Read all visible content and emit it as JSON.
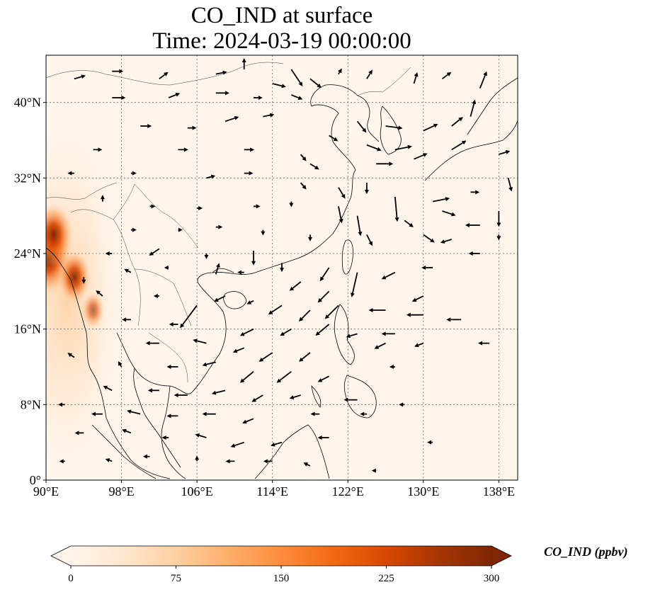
{
  "title": {
    "line1": "CO_IND at surface",
    "line2": "Time: 2024-03-19 00:00:00"
  },
  "map": {
    "lon_range": [
      90,
      140
    ],
    "lat_range": [
      0,
      45
    ],
    "x_ticks": [
      {
        "value": 90,
        "label": "90°E"
      },
      {
        "value": 98,
        "label": "98°E"
      },
      {
        "value": 106,
        "label": "106°E"
      },
      {
        "value": 114,
        "label": "114°E"
      },
      {
        "value": 122,
        "label": "122°E"
      },
      {
        "value": 130,
        "label": "130°E"
      },
      {
        "value": 138,
        "label": "138°E"
      }
    ],
    "y_ticks": [
      {
        "value": 0,
        "label": "0°"
      },
      {
        "value": 8,
        "label": "8°N"
      },
      {
        "value": 16,
        "label": "16°N"
      },
      {
        "value": 24,
        "label": "24°N"
      },
      {
        "value": 32,
        "label": "32°N"
      },
      {
        "value": 40,
        "label": "40°N"
      }
    ],
    "gridlines": true,
    "background_color": "#fff5eb",
    "hotspots": [
      {
        "lon": 90.3,
        "lat": 23.5,
        "value": 300
      },
      {
        "lon": 90.8,
        "lat": 26.0,
        "value": 240
      },
      {
        "lon": 93.0,
        "lat": 21.5,
        "value": 180
      },
      {
        "lon": 95.0,
        "lat": 18.0,
        "value": 90
      }
    ]
  },
  "colorbar": {
    "label": "CO_IND (ppbv)",
    "min": 0,
    "max": 300,
    "extend": "both",
    "ticks": [
      {
        "value": 0,
        "label": "0"
      },
      {
        "value": 75,
        "label": "75"
      },
      {
        "value": 150,
        "label": "150"
      },
      {
        "value": 225,
        "label": "225"
      },
      {
        "value": 300,
        "label": "300"
      }
    ],
    "colors": [
      "#fff5eb",
      "#fee6ce",
      "#fdd0a2",
      "#fdae6b",
      "#fd8d3c",
      "#f16913",
      "#d94801",
      "#a63603",
      "#7f2704"
    ]
  },
  "wind_vectors": [
    {
      "lon": 93,
      "lat": 42.5,
      "u": 1.0,
      "v": 0.3
    },
    {
      "lon": 97,
      "lat": 43.3,
      "u": 1.0,
      "v": 0.0
    },
    {
      "lon": 102,
      "lat": 42.5,
      "u": 0.8,
      "v": 0.6
    },
    {
      "lon": 108,
      "lat": 43,
      "u": 1.0,
      "v": 0.2
    },
    {
      "lon": 111,
      "lat": 43.5,
      "u": 0.0,
      "v": 1.0
    },
    {
      "lon": 114,
      "lat": 42,
      "u": 1.2,
      "v": -0.3
    },
    {
      "lon": 116,
      "lat": 43.5,
      "u": 1.0,
      "v": -1.5
    },
    {
      "lon": 118,
      "lat": 42.5,
      "u": 1.0,
      "v": -0.8
    },
    {
      "lon": 121,
      "lat": 43.0,
      "u": 0.3,
      "v": 0.5
    },
    {
      "lon": 124,
      "lat": 42.5,
      "u": 0.5,
      "v": 0.8
    },
    {
      "lon": 129,
      "lat": 42.0,
      "u": 0.3,
      "v": 1.0
    },
    {
      "lon": 132,
      "lat": 42.5,
      "u": 0.8,
      "v": 0.6
    },
    {
      "lon": 136,
      "lat": 41.5,
      "u": 0.6,
      "v": 1.5
    },
    {
      "lon": 97,
      "lat": 40.5,
      "u": 1.2,
      "v": 0.0
    },
    {
      "lon": 103,
      "lat": 40.5,
      "u": 1.0,
      "v": 0.4
    },
    {
      "lon": 108,
      "lat": 41,
      "u": 1.2,
      "v": 0.0
    },
    {
      "lon": 112,
      "lat": 40.5,
      "u": 0.8,
      "v": 0.0
    },
    {
      "lon": 116,
      "lat": 40.8,
      "u": 1.0,
      "v": -0.4
    },
    {
      "lon": 123,
      "lat": 38.0,
      "u": 0.8,
      "v": -1.0
    },
    {
      "lon": 126,
      "lat": 37.5,
      "u": 1.5,
      "v": -0.2
    },
    {
      "lon": 130,
      "lat": 37.0,
      "u": 1.3,
      "v": 0.6
    },
    {
      "lon": 133,
      "lat": 37.5,
      "u": 1.0,
      "v": 0.8
    },
    {
      "lon": 135,
      "lat": 38.5,
      "u": 0.4,
      "v": 1.5
    },
    {
      "lon": 100,
      "lat": 37.5,
      "u": 1.0,
      "v": 0.0
    },
    {
      "lon": 105,
      "lat": 37.3,
      "u": 0.8,
      "v": 0.0
    },
    {
      "lon": 109,
      "lat": 38.0,
      "u": 1.2,
      "v": 0.4
    },
    {
      "lon": 113,
      "lat": 38.5,
      "u": 1.0,
      "v": 0.2
    },
    {
      "lon": 120,
      "lat": 36.5,
      "u": 0.8,
      "v": -0.5
    },
    {
      "lon": 124,
      "lat": 35.5,
      "u": 1.3,
      "v": -0.5
    },
    {
      "lon": 127,
      "lat": 35.0,
      "u": 1.5,
      "v": 0.3
    },
    {
      "lon": 129,
      "lat": 34.0,
      "u": 1.2,
      "v": 0.5
    },
    {
      "lon": 133,
      "lat": 35.0,
      "u": 1.3,
      "v": 0.8
    },
    {
      "lon": 138,
      "lat": 34.5,
      "u": 1.0,
      "v": 0.3
    },
    {
      "lon": 95,
      "lat": 35.0,
      "u": 0.8,
      "v": 0.0
    },
    {
      "lon": 104,
      "lat": 35.0,
      "u": 0.9,
      "v": 0.0
    },
    {
      "lon": 111,
      "lat": 35.0,
      "u": 0.9,
      "v": 0.0
    },
    {
      "lon": 117,
      "lat": 34.5,
      "u": 0.5,
      "v": -0.6
    },
    {
      "lon": 118,
      "lat": 33.5,
      "u": 0.8,
      "v": -0.5
    },
    {
      "lon": 125,
      "lat": 33.5,
      "u": 1.5,
      "v": 0.0
    },
    {
      "lon": 139,
      "lat": 32.0,
      "u": 0.3,
      "v": -1.2
    },
    {
      "lon": 93,
      "lat": 32.5,
      "u": -0.6,
      "v": 0.0
    },
    {
      "lon": 99,
      "lat": 32.5,
      "u": 0.5,
      "v": 0.0
    },
    {
      "lon": 107,
      "lat": 32.0,
      "u": 0.8,
      "v": 0.2
    },
    {
      "lon": 111,
      "lat": 32.5,
      "u": 0.8,
      "v": 0.0
    },
    {
      "lon": 117,
      "lat": 31.5,
      "u": 0.5,
      "v": -0.6
    },
    {
      "lon": 121,
      "lat": 31.0,
      "u": 0.6,
      "v": -1.0
    },
    {
      "lon": 124,
      "lat": 31.5,
      "u": 0.0,
      "v": -1.0
    },
    {
      "lon": 127,
      "lat": 30.0,
      "u": 0.2,
      "v": -2.2
    },
    {
      "lon": 131,
      "lat": 29.5,
      "u": 1.5,
      "v": 0.3
    },
    {
      "lon": 135,
      "lat": 30.5,
      "u": 0.8,
      "v": 0.0
    },
    {
      "lon": 138,
      "lat": 28.5,
      "u": 0.0,
      "v": -1.4
    },
    {
      "lon": 96,
      "lat": 29.5,
      "u": 0.0,
      "v": 0.6
    },
    {
      "lon": 101,
      "lat": 29.0,
      "u": 0.5,
      "v": 0.0
    },
    {
      "lon": 106,
      "lat": 28.8,
      "u": 0.5,
      "v": 0.0
    },
    {
      "lon": 112,
      "lat": 29.0,
      "u": 0.6,
      "v": 0.0
    },
    {
      "lon": 116,
      "lat": 29.5,
      "u": 0.0,
      "v": -0.5
    },
    {
      "lon": 121,
      "lat": 29.0,
      "u": 0.3,
      "v": -1.5
    },
    {
      "lon": 123,
      "lat": 28.0,
      "u": 0.3,
      "v": -1.8
    },
    {
      "lon": 128,
      "lat": 27.5,
      "u": 0.8,
      "v": -0.6
    },
    {
      "lon": 132,
      "lat": 28.5,
      "u": 1.2,
      "v": -0.4
    },
    {
      "lon": 136,
      "lat": 27.0,
      "u": -1.3,
      "v": 0.0
    },
    {
      "lon": 99,
      "lat": 26.5,
      "u": 0.5,
      "v": 0.0
    },
    {
      "lon": 104,
      "lat": 26.5,
      "u": 0.4,
      "v": 0.0
    },
    {
      "lon": 108,
      "lat": 26.8,
      "u": 0.6,
      "v": 0.0
    },
    {
      "lon": 113,
      "lat": 26.5,
      "u": 0.0,
      "v": -0.5
    },
    {
      "lon": 118,
      "lat": 26.0,
      "u": 0.0,
      "v": -0.6
    },
    {
      "lon": 124,
      "lat": 26.0,
      "u": 0.5,
      "v": -1.0
    },
    {
      "lon": 130,
      "lat": 26.0,
      "u": 1.0,
      "v": -0.7
    },
    {
      "lon": 133,
      "lat": 25.5,
      "u": -1.0,
      "v": -0.3
    },
    {
      "lon": 138,
      "lat": 26.0,
      "u": 0.0,
      "v": -0.5
    },
    {
      "lon": 97,
      "lat": 24.0,
      "u": -0.6,
      "v": 0.0
    },
    {
      "lon": 102,
      "lat": 24.5,
      "u": -0.9,
      "v": -0.6
    },
    {
      "lon": 107,
      "lat": 24.0,
      "u": 0.0,
      "v": -0.5
    },
    {
      "lon": 112,
      "lat": 24.3,
      "u": 0.0,
      "v": -1.3
    },
    {
      "lon": 115,
      "lat": 23.0,
      "u": 0.0,
      "v": -0.8
    },
    {
      "lon": 120,
      "lat": 22.5,
      "u": -0.8,
      "v": -1.2
    },
    {
      "lon": 123,
      "lat": 22.0,
      "u": -0.5,
      "v": -2.2
    },
    {
      "lon": 127,
      "lat": 22.0,
      "u": -1.2,
      "v": -0.6
    },
    {
      "lon": 131,
      "lat": 22.5,
      "u": -1.0,
      "v": 0.0
    },
    {
      "lon": 136,
      "lat": 24.0,
      "u": -1.0,
      "v": 0.0
    },
    {
      "lon": 94,
      "lat": 21.5,
      "u": 0.0,
      "v": -0.6
    },
    {
      "lon": 99,
      "lat": 22.0,
      "u": -0.6,
      "v": 0.3
    },
    {
      "lon": 103,
      "lat": 22.5,
      "u": -0.4,
      "v": 0.0
    },
    {
      "lon": 108,
      "lat": 21.8,
      "u": 0.3,
      "v": 1.0
    },
    {
      "lon": 111,
      "lat": 22.0,
      "u": -0.6,
      "v": 0.0
    },
    {
      "lon": 117,
      "lat": 21.0,
      "u": -1.0,
      "v": -0.8
    },
    {
      "lon": 120,
      "lat": 20.0,
      "u": -1.0,
      "v": -1.0
    },
    {
      "lon": 130,
      "lat": 19.5,
      "u": -1.0,
      "v": -0.5
    },
    {
      "lon": 96,
      "lat": 19.5,
      "u": -0.6,
      "v": 0.5
    },
    {
      "lon": 102,
      "lat": 19.5,
      "u": -0.5,
      "v": 0.0
    },
    {
      "lon": 106,
      "lat": 18.5,
      "u": -1.5,
      "v": -2.0
    },
    {
      "lon": 109,
      "lat": 19.5,
      "u": -1.0,
      "v": -0.5
    },
    {
      "lon": 112,
      "lat": 19.0,
      "u": -0.6,
      "v": -0.3
    },
    {
      "lon": 115,
      "lat": 18.5,
      "u": -1.2,
      "v": -0.8
    },
    {
      "lon": 118,
      "lat": 18.0,
      "u": -1.0,
      "v": -1.0
    },
    {
      "lon": 121,
      "lat": 18.5,
      "u": -1.2,
      "v": -1.2
    },
    {
      "lon": 126,
      "lat": 18.0,
      "u": -1.5,
      "v": 0.0
    },
    {
      "lon": 130,
      "lat": 17.5,
      "u": -1.5,
      "v": 0.0
    },
    {
      "lon": 134,
      "lat": 17.0,
      "u": -1.3,
      "v": 0.0
    },
    {
      "lon": 99,
      "lat": 17.0,
      "u": -0.8,
      "v": 0.0
    },
    {
      "lon": 104,
      "lat": 16.5,
      "u": -0.8,
      "v": 0.0
    },
    {
      "lon": 112,
      "lat": 16.0,
      "u": -1.2,
      "v": -0.6
    },
    {
      "lon": 116,
      "lat": 16.0,
      "u": -1.0,
      "v": -0.6
    },
    {
      "lon": 120,
      "lat": 16.5,
      "u": -1.2,
      "v": -1.0
    },
    {
      "lon": 123,
      "lat": 15.5,
      "u": -1.0,
      "v": -0.3
    },
    {
      "lon": 127,
      "lat": 15.5,
      "u": -1.2,
      "v": 0.0
    },
    {
      "lon": 102,
      "lat": 14.5,
      "u": -1.2,
      "v": 0.0
    },
    {
      "lon": 107,
      "lat": 14.5,
      "u": -1.2,
      "v": 0.3
    },
    {
      "lon": 111,
      "lat": 14.0,
      "u": -1.0,
      "v": -0.4
    },
    {
      "lon": 114,
      "lat": 13.5,
      "u": -1.2,
      "v": -0.8
    },
    {
      "lon": 118,
      "lat": 13.5,
      "u": -1.0,
      "v": -0.8
    },
    {
      "lon": 126,
      "lat": 14.5,
      "u": -1.0,
      "v": -0.5
    },
    {
      "lon": 130,
      "lat": 14.5,
      "u": -0.8,
      "v": -0.3
    },
    {
      "lon": 137,
      "lat": 14.5,
      "u": -1.0,
      "v": 0.0
    },
    {
      "lon": 93,
      "lat": 13.0,
      "u": -0.6,
      "v": 0.4
    },
    {
      "lon": 98,
      "lat": 12.0,
      "u": -0.3,
      "v": 0.5
    },
    {
      "lon": 104,
      "lat": 12.0,
      "u": -1.0,
      "v": 0.0
    },
    {
      "lon": 108,
      "lat": 12.5,
      "u": -1.2,
      "v": -0.3
    },
    {
      "lon": 112,
      "lat": 11.5,
      "u": -1.2,
      "v": -1.0
    },
    {
      "lon": 116,
      "lat": 11.5,
      "u": -1.3,
      "v": -1.0
    },
    {
      "lon": 120,
      "lat": 11.0,
      "u": -1.0,
      "v": -0.5
    },
    {
      "lon": 127,
      "lat": 12.0,
      "u": -0.5,
      "v": 0.0
    },
    {
      "lon": 97,
      "lat": 9.5,
      "u": -0.8,
      "v": 0.4
    },
    {
      "lon": 102,
      "lat": 9.5,
      "u": -1.0,
      "v": 0.0
    },
    {
      "lon": 105,
      "lat": 9.0,
      "u": -1.2,
      "v": 0.0
    },
    {
      "lon": 109,
      "lat": 9.5,
      "u": -1.2,
      "v": -0.3
    },
    {
      "lon": 113,
      "lat": 9.0,
      "u": -1.0,
      "v": -0.6
    },
    {
      "lon": 117,
      "lat": 9.0,
      "u": -1.0,
      "v": -0.3
    },
    {
      "lon": 123,
      "lat": 8.5,
      "u": -1.2,
      "v": 0.0
    },
    {
      "lon": 128,
      "lat": 8.0,
      "u": -0.5,
      "v": 0.0
    },
    {
      "lon": 92,
      "lat": 8.0,
      "u": -0.6,
      "v": 0.0
    },
    {
      "lon": 96,
      "lat": 7.0,
      "u": -1.0,
      "v": 0.0
    },
    {
      "lon": 100,
      "lat": 7.0,
      "u": -1.2,
      "v": 0.3
    },
    {
      "lon": 104,
      "lat": 6.8,
      "u": -1.0,
      "v": 0.0
    },
    {
      "lon": 108,
      "lat": 7.0,
      "u": -1.2,
      "v": 0.0
    },
    {
      "lon": 112,
      "lat": 6.5,
      "u": -1.0,
      "v": -0.4
    },
    {
      "lon": 119,
      "lat": 7.0,
      "u": -0.8,
      "v": 0.0
    },
    {
      "lon": 124,
      "lat": 7.0,
      "u": -0.6,
      "v": 0.0
    },
    {
      "lon": 94,
      "lat": 5.0,
      "u": -0.8,
      "v": 0.0
    },
    {
      "lon": 99,
      "lat": 5.0,
      "u": -0.8,
      "v": 0.3
    },
    {
      "lon": 103,
      "lat": 4.5,
      "u": -0.6,
      "v": 0.0
    },
    {
      "lon": 107,
      "lat": 4.5,
      "u": -1.0,
      "v": 0.3
    },
    {
      "lon": 111,
      "lat": 4.0,
      "u": -1.2,
      "v": -0.4
    },
    {
      "lon": 115,
      "lat": 4.0,
      "u": -1.0,
      "v": -0.3
    },
    {
      "lon": 120,
      "lat": 4.5,
      "u": -1.0,
      "v": 0.0
    },
    {
      "lon": 131,
      "lat": 4.0,
      "u": -0.5,
      "v": 0.0
    },
    {
      "lon": 92,
      "lat": 2.0,
      "u": -0.5,
      "v": 0.0
    },
    {
      "lon": 97,
      "lat": 2.0,
      "u": -0.6,
      "v": 0.2
    },
    {
      "lon": 101,
      "lat": 2.5,
      "u": -0.6,
      "v": 0.0
    },
    {
      "lon": 106,
      "lat": 2.0,
      "u": 0.0,
      "v": 0.5
    },
    {
      "lon": 110,
      "lat": 2.0,
      "u": -0.8,
      "v": 0.0
    },
    {
      "lon": 114,
      "lat": 2.0,
      "u": -0.8,
      "v": 0.0
    },
    {
      "lon": 118,
      "lat": 1.5,
      "u": -0.6,
      "v": 0.3
    },
    {
      "lon": 125,
      "lat": 1.0,
      "u": -0.4,
      "v": 0.0
    }
  ]
}
